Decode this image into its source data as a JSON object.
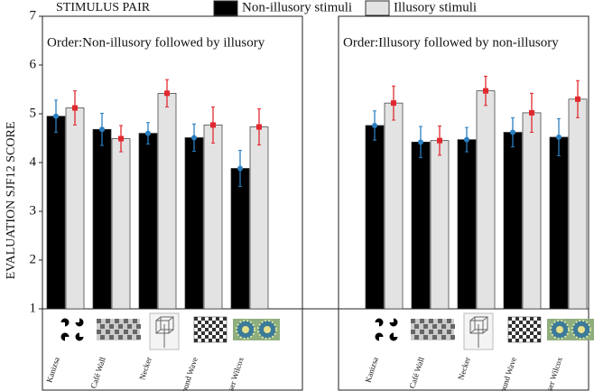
{
  "chart_data": [
    {
      "type": "bar",
      "title": "Order:Non-illusory followed by illusory",
      "y_label": "EVALUATION SJF12 SCORE",
      "legend_title": "STIMULUS PAIR",
      "categories": [
        "Kanizsa",
        "Café Wall",
        "Necker",
        "Sound Wave",
        "Fraser Wilcox"
      ],
      "ylim": [
        1,
        7
      ],
      "yticks": [
        1,
        2,
        3,
        4,
        5,
        6,
        7
      ],
      "series": [
        {
          "name": "Non-illusory stimuli",
          "color": "#000000",
          "error_color": "#2a7fc1",
          "values": [
            4.95,
            4.68,
            4.6,
            4.51,
            3.88
          ],
          "errors": [
            0.33,
            0.33,
            0.22,
            0.28,
            0.37
          ]
        },
        {
          "name": "Illusory stimuli",
          "color": "#e3e3e3",
          "error_color": "#e0282e",
          "values": [
            5.12,
            4.49,
            5.42,
            4.77,
            4.73
          ],
          "errors": [
            0.35,
            0.27,
            0.28,
            0.37,
            0.37
          ]
        }
      ]
    },
    {
      "type": "bar",
      "title": "Order:Illusory followed by non-illusory",
      "categories": [
        "Kanizsa",
        "Café Wall",
        "Necker",
        "Sound Wave",
        "Fraser Wilcox"
      ],
      "ylim": [
        1,
        7
      ],
      "series": [
        {
          "values": [
            4.76,
            4.42,
            4.47,
            4.62,
            4.52
          ],
          "errors": [
            0.3,
            0.32,
            0.25,
            0.3,
            0.38
          ]
        },
        {
          "values": [
            5.22,
            4.45,
            5.47,
            5.02,
            5.3
          ],
          "errors": [
            0.35,
            0.3,
            0.3,
            0.4,
            0.38
          ]
        }
      ]
    }
  ]
}
